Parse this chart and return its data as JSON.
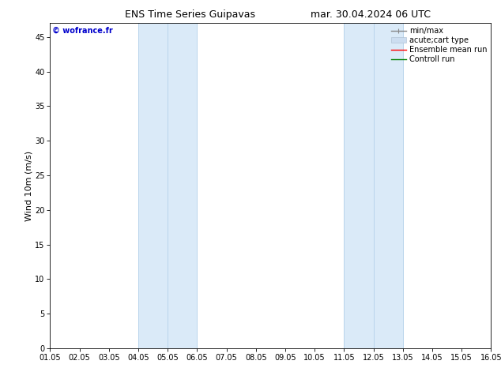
{
  "title_left": "ENS Time Series Guipavas",
  "title_right": "mar. 30.04.2024 06 UTC",
  "ylabel": "Wind 10m (m/s)",
  "watermark": "© wofrance.fr",
  "xtick_labels": [
    "01.05",
    "02.05",
    "03.05",
    "04.05",
    "05.05",
    "06.05",
    "07.05",
    "08.05",
    "09.05",
    "10.05",
    "11.05",
    "12.05",
    "13.05",
    "14.05",
    "15.05",
    "16.05"
  ],
  "xtick_positions": [
    0,
    1,
    2,
    3,
    4,
    5,
    6,
    7,
    8,
    9,
    10,
    11,
    12,
    13,
    14,
    15
  ],
  "ylim": [
    0,
    47
  ],
  "ytick_positions": [
    0,
    5,
    10,
    15,
    20,
    25,
    30,
    35,
    40,
    45
  ],
  "ytick_labels": [
    "0",
    "5",
    "10",
    "15",
    "20",
    "25",
    "30",
    "35",
    "40",
    "45"
  ],
  "shaded_regions": [
    {
      "xstart": 3,
      "xend": 5,
      "color": "#daeaf8"
    },
    {
      "xstart": 10,
      "xend": 12,
      "color": "#daeaf8"
    }
  ],
  "shaded_region_vlines": [
    3,
    4,
    5,
    10,
    11,
    12
  ],
  "vline_color": "#b8d4ec",
  "legend_entries": [
    {
      "label": "min/max",
      "color": "#aaaaaa"
    },
    {
      "label": "acute;cart type",
      "color": "#ccddf0"
    },
    {
      "label": "Ensemble mean run",
      "color": "red"
    },
    {
      "label": "Controll run",
      "color": "green"
    }
  ],
  "bg_color": "#ffffff",
  "watermark_color": "#0000cc",
  "title_fontsize": 9,
  "label_fontsize": 8,
  "tick_fontsize": 7,
  "legend_fontsize": 7,
  "watermark_fontsize": 7
}
